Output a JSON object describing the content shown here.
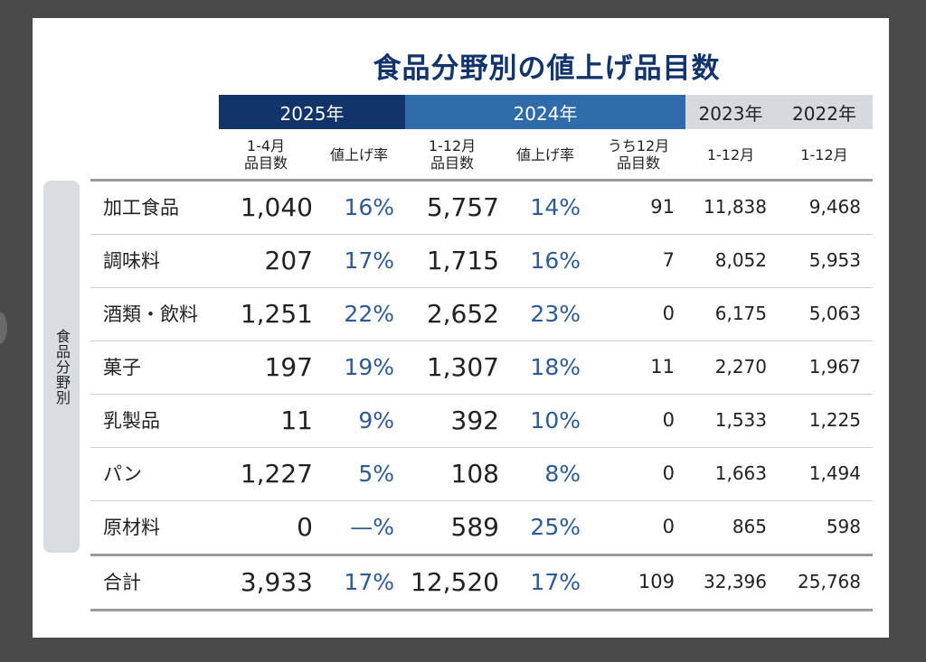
{
  "title": "食品分野別の値上げ品目数",
  "years": {
    "y2025": "2025年",
    "y2024": "2024年",
    "y2023": "2023年",
    "y2022": "2022年"
  },
  "subheaders": {
    "s2025_items": [
      "1-4月",
      "品目数"
    ],
    "s2025_rate": "値上げ率",
    "s2024_items": [
      "1-12月",
      "品目数"
    ],
    "s2024_rate": "値上げ率",
    "s2024_dec": [
      "うち12月",
      "品目数"
    ],
    "s2023": "1-12月",
    "s2022": "1-12月"
  },
  "side_label": "食品分野別",
  "rows": [
    {
      "label": "加工食品",
      "v2025": "1,040",
      "r2025": "16%",
      "v2024": "5,757",
      "r2024": "14%",
      "dec2024": "91",
      "v2023": "11,838",
      "v2022": "9,468"
    },
    {
      "label": "調味料",
      "v2025": "207",
      "r2025": "17%",
      "v2024": "1,715",
      "r2024": "16%",
      "dec2024": "7",
      "v2023": "8,052",
      "v2022": "5,953"
    },
    {
      "label": "酒類・飲料",
      "v2025": "1,251",
      "r2025": "22%",
      "v2024": "2,652",
      "r2024": "23%",
      "dec2024": "0",
      "v2023": "6,175",
      "v2022": "5,063"
    },
    {
      "label": "菓子",
      "v2025": "197",
      "r2025": "19%",
      "v2024": "1,307",
      "r2024": "18%",
      "dec2024": "11",
      "v2023": "2,270",
      "v2022": "1,967"
    },
    {
      "label": "乳製品",
      "v2025": "11",
      "r2025": "9%",
      "v2024": "392",
      "r2024": "10%",
      "dec2024": "0",
      "v2023": "1,533",
      "v2022": "1,225"
    },
    {
      "label": "パン",
      "v2025": "1,227",
      "r2025": "5%",
      "v2024": "108",
      "r2024": "8%",
      "dec2024": "0",
      "v2023": "1,663",
      "v2022": "1,494"
    },
    {
      "label": "原材料",
      "v2025": "0",
      "r2025": "—%",
      "v2024": "589",
      "r2024": "25%",
      "dec2024": "0",
      "v2023": "865",
      "v2022": "598"
    }
  ],
  "total": {
    "label": "合計",
    "v2025": "3,933",
    "r2025": "17%",
    "v2024": "12,520",
    "r2024": "17%",
    "dec2024": "109",
    "v2023": "32,396",
    "v2022": "25,768"
  },
  "colors": {
    "navy": "#12346a",
    "blue": "#2f6ba8",
    "gray": "#d6dade",
    "rate_text": "#2f5a93"
  }
}
